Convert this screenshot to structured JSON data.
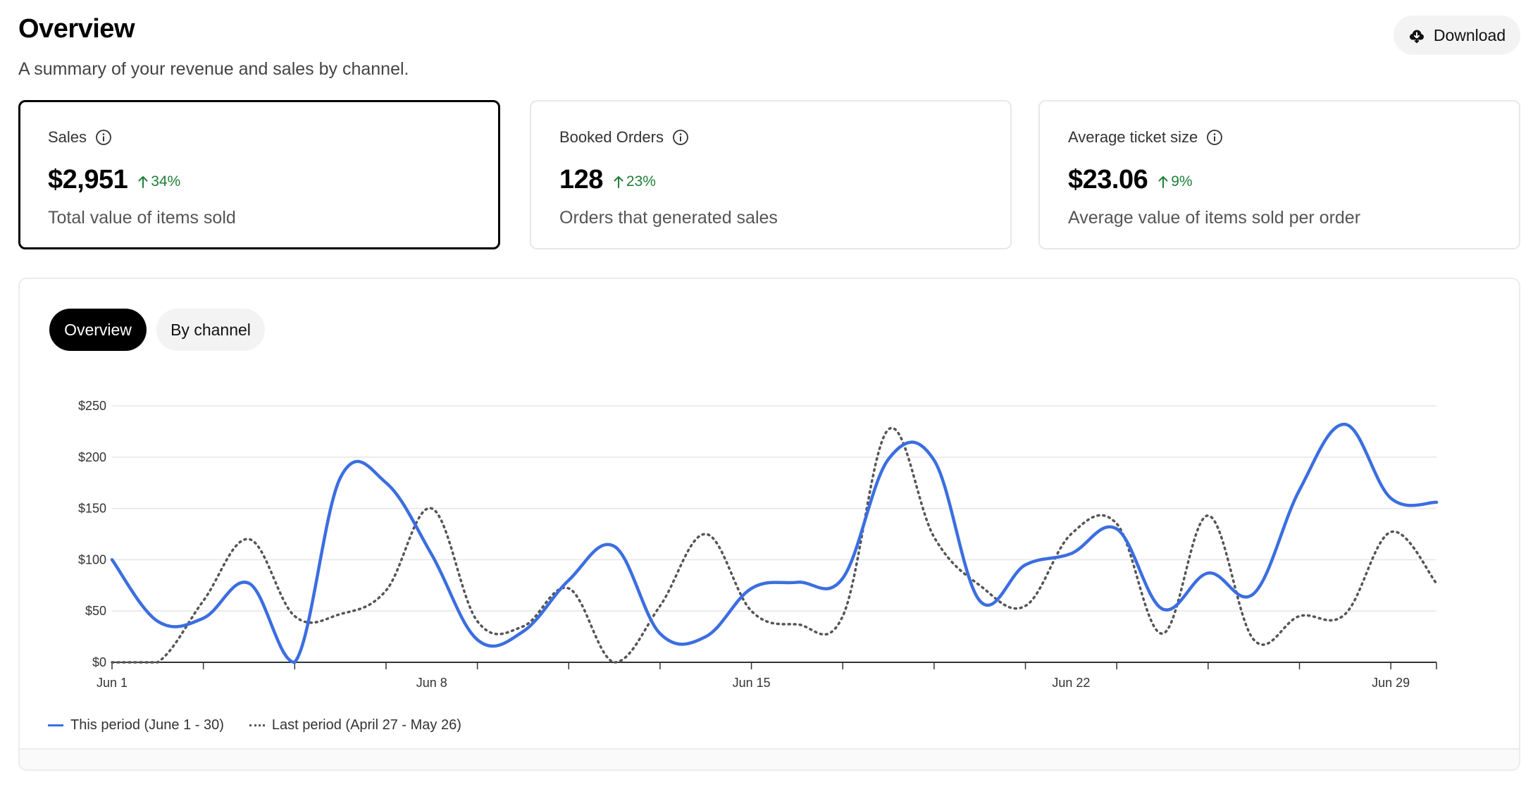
{
  "header": {
    "title": "Overview",
    "subtitle": "A summary of your revenue and sales by channel.",
    "download_label": "Download",
    "download_icon": "cloud-download-icon"
  },
  "metrics": [
    {
      "label": "Sales",
      "value": "$2,951",
      "change": "34%",
      "description": "Total value of items sold",
      "selected": true
    },
    {
      "label": "Booked Orders",
      "value": "128",
      "change": "23%",
      "description": "Orders that generated sales",
      "selected": false
    },
    {
      "label": "Average ticket size",
      "value": "$23.06",
      "change": "9%",
      "description": "Average value of items sold per order",
      "selected": false
    }
  ],
  "tabs": [
    {
      "label": "Overview",
      "active": true
    },
    {
      "label": "By channel",
      "active": false
    }
  ],
  "colors": {
    "this_period": "#3b6ee0",
    "last_period": "#555555",
    "positive_change": "#1e7f3a"
  },
  "chart_data": {
    "type": "line",
    "x": [
      1,
      2,
      3,
      4,
      5,
      6,
      7,
      8,
      9,
      10,
      11,
      12,
      13,
      14,
      15,
      16,
      17,
      18,
      19,
      20,
      21,
      22,
      23,
      24,
      25,
      26,
      27,
      28,
      29,
      30
    ],
    "x_tick_labels": [
      {
        "x": 1,
        "label": "Jun 1"
      },
      {
        "x": 8,
        "label": "Jun 8"
      },
      {
        "x": 15,
        "label": "Jun 15"
      },
      {
        "x": 22,
        "label": "Jun 22"
      },
      {
        "x": 29,
        "label": "Jun 29"
      }
    ],
    "y_tick_labels": [
      "$0",
      "$50",
      "$100",
      "$150",
      "$200",
      "$250"
    ],
    "y_ticks": [
      0,
      50,
      100,
      150,
      200,
      250
    ],
    "ylim": [
      0,
      250
    ],
    "xlim": [
      1,
      30
    ],
    "grid": true,
    "legend_position": "bottom-left",
    "series": [
      {
        "name": "This period (June 1 - 30)",
        "style": "solid",
        "values": [
          100,
          40,
          43,
          77,
          0,
          180,
          175,
          105,
          22,
          30,
          80,
          113,
          28,
          25,
          72,
          78,
          82,
          198,
          197,
          60,
          95,
          106,
          130,
          52,
          87,
          67,
          168,
          232,
          160,
          156
        ]
      },
      {
        "name": "Last period (April 27 - May 26)",
        "style": "dotted",
        "values": [
          0,
          0,
          60,
          120,
          45,
          47,
          70,
          150,
          40,
          35,
          72,
          0,
          55,
          125,
          50,
          37,
          45,
          227,
          122,
          75,
          55,
          125,
          135,
          28,
          143,
          22,
          45,
          47,
          127,
          77
        ]
      }
    ]
  }
}
